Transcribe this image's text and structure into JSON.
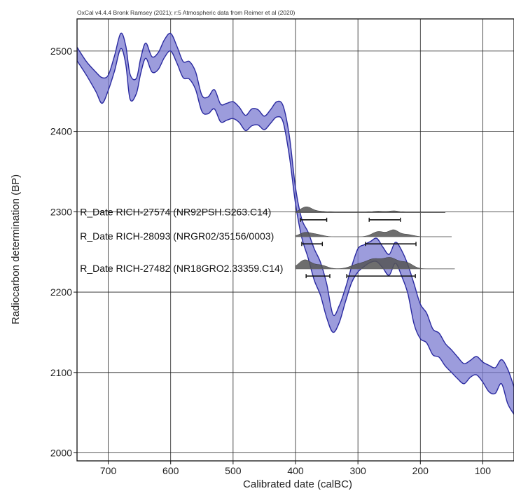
{
  "chart_data": {
    "type": "area",
    "credit": "OxCal v4.4.4 Bronk Ramsey (2021); r:5 Atmospheric data from Reimer et al (2020)",
    "xlabel": "Calibrated date (calBC)",
    "ylabel": "Radiocarbon determination (BP)",
    "xlim": [
      750,
      50
    ],
    "ylim": [
      1990,
      2540
    ],
    "x_ticks": [
      700,
      600,
      500,
      400,
      300,
      200,
      100
    ],
    "y_ticks": [
      2000,
      2100,
      2200,
      2300,
      2400,
      2500
    ],
    "grid": true,
    "band_color": "#7b7bd0",
    "band_edge_color": "#2a2aa0",
    "dist_color": "#555555",
    "calibration_curve": {
      "x": [
        750,
        735,
        720,
        710,
        700,
        690,
        680,
        672,
        665,
        655,
        648,
        640,
        630,
        620,
        610,
        600,
        590,
        580,
        570,
        560,
        550,
        540,
        530,
        520,
        510,
        500,
        490,
        480,
        470,
        460,
        450,
        440,
        430,
        420,
        410,
        400,
        390,
        380,
        370,
        360,
        350,
        340,
        330,
        320,
        310,
        300,
        290,
        280,
        270,
        260,
        250,
        240,
        230,
        220,
        210,
        200,
        190,
        180,
        170,
        160,
        150,
        140,
        130,
        120,
        110,
        100,
        90,
        80,
        70,
        60,
        50
      ],
      "upper": [
        2505,
        2487,
        2474,
        2467,
        2470,
        2494,
        2522,
        2507,
        2471,
        2466,
        2491,
        2510,
        2493,
        2498,
        2514,
        2522,
        2506,
        2487,
        2487,
        2474,
        2445,
        2443,
        2452,
        2434,
        2435,
        2437,
        2430,
        2420,
        2428,
        2427,
        2419,
        2427,
        2437,
        2432,
        2395,
        2330,
        2291,
        2275,
        2254,
        2237,
        2210,
        2172,
        2183,
        2205,
        2232,
        2254,
        2259,
        2263,
        2267,
        2256,
        2247,
        2262,
        2252,
        2234,
        2210,
        2185,
        2174,
        2154,
        2149,
        2136,
        2128,
        2119,
        2111,
        2115,
        2120,
        2113,
        2109,
        2106,
        2116,
        2104,
        2082
      ],
      "lower": [
        2488,
        2470,
        2450,
        2435,
        2451,
        2475,
        2503,
        2484,
        2440,
        2447,
        2472,
        2491,
        2474,
        2477,
        2492,
        2500,
        2485,
        2467,
        2465,
        2452,
        2425,
        2422,
        2428,
        2412,
        2414,
        2416,
        2411,
        2401,
        2407,
        2408,
        2402,
        2410,
        2418,
        2412,
        2370,
        2310,
        2268,
        2243,
        2215,
        2196,
        2168,
        2150,
        2162,
        2188,
        2212,
        2225,
        2232,
        2237,
        2238,
        2230,
        2221,
        2236,
        2220,
        2198,
        2160,
        2142,
        2137,
        2122,
        2119,
        2108,
        2100,
        2092,
        2086,
        2094,
        2097,
        2088,
        2076,
        2074,
        2086,
        2061,
        2048
      ]
    },
    "determinations": [
      {
        "label": "R_Date RICH-27574 (NR92PSH.S263.C14)",
        "label_x": 752,
        "baseline_bp": 2299,
        "height_bp": 7,
        "x_end": 160,
        "peaks": [
          [
            383,
            1.0,
            9
          ],
          [
            360,
            0.22,
            12
          ],
          [
            268,
            0.25,
            10
          ],
          [
            242,
            0.3,
            9
          ]
        ],
        "ranges": [
          [
            392,
            350
          ],
          [
            282,
            232
          ]
        ],
        "range_bp": 2290
      },
      {
        "label": "R_Date RICH-28093 (NRGR02/35156/0003)",
        "label_x": 752,
        "baseline_bp": 2269,
        "height_bp": 8,
        "x_end": 150,
        "peaks": [
          [
            385,
            0.6,
            9
          ],
          [
            367,
            0.35,
            10
          ],
          [
            267,
            0.8,
            10
          ],
          [
            243,
            1.0,
            8
          ],
          [
            222,
            0.35,
            10
          ]
        ],
        "ranges": [
          [
            390,
            357
          ],
          [
            288,
            207
          ]
        ],
        "range_bp": 2260
      },
      {
        "label": "R_Date RICH-27482 (NR18GRO2.33359.C14)",
        "label_x": 752,
        "baseline_bp": 2229,
        "height_bp": 13,
        "x_end": 145,
        "peaks": [
          [
            385,
            0.85,
            10
          ],
          [
            360,
            0.35,
            10
          ],
          [
            300,
            0.4,
            12
          ],
          [
            275,
            0.85,
            12
          ],
          [
            248,
            1.0,
            12
          ],
          [
            222,
            0.55,
            10
          ]
        ],
        "ranges": [
          [
            383,
            345
          ],
          [
            318,
            208
          ]
        ],
        "range_bp": 2220
      }
    ]
  }
}
